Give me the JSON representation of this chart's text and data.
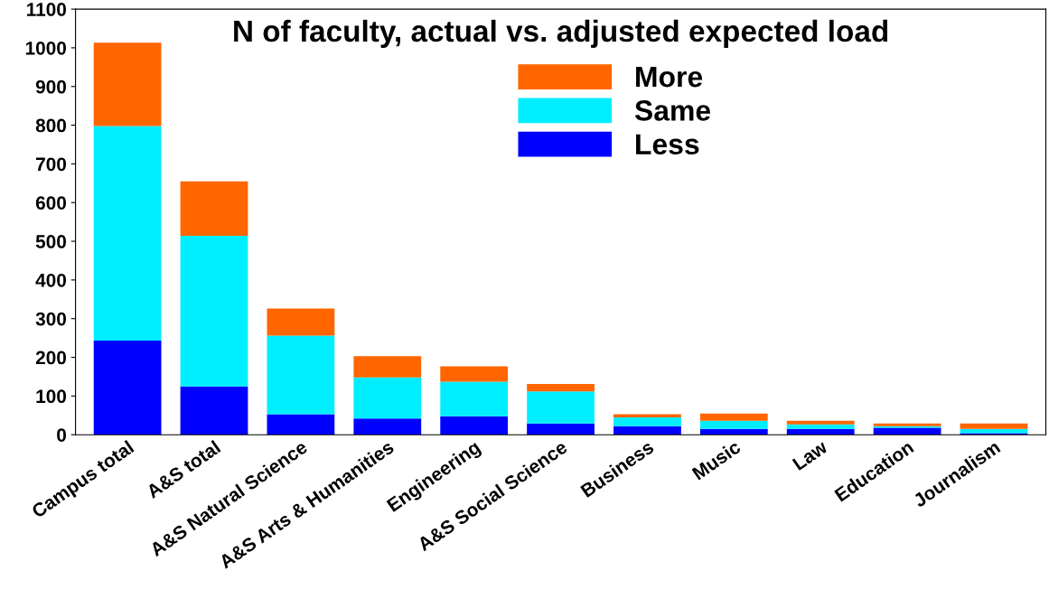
{
  "chart_data": {
    "type": "bar",
    "title": "N of faculty, actual vs. adjusted expected load",
    "categories": [
      "Campus total",
      "A&S total",
      "A&S Natural Science",
      "A&S Arts & Humanities",
      "Engineering",
      "A&S Social Science",
      "Business",
      "Music",
      "Law",
      "Education",
      "Journalism"
    ],
    "stacked": true,
    "series": [
      {
        "name": "Less",
        "color": "#0000ff",
        "values": [
          243,
          125,
          53,
          42,
          48,
          29,
          22,
          15,
          15,
          18,
          4
        ]
      },
      {
        "name": "Same",
        "color": "#00eeff",
        "values": [
          555,
          389,
          203,
          106,
          89,
          83,
          23,
          21,
          12,
          4,
          11
        ]
      },
      {
        "name": "More",
        "color": "#ff6600",
        "values": [
          215,
          141,
          70,
          55,
          40,
          19,
          8,
          19,
          9,
          7,
          14
        ]
      }
    ],
    "ylim": [
      0,
      1100
    ],
    "yticks": [
      0,
      100,
      200,
      300,
      400,
      500,
      600,
      700,
      800,
      900,
      1000,
      1100
    ],
    "grid": false,
    "legend": "top"
  }
}
